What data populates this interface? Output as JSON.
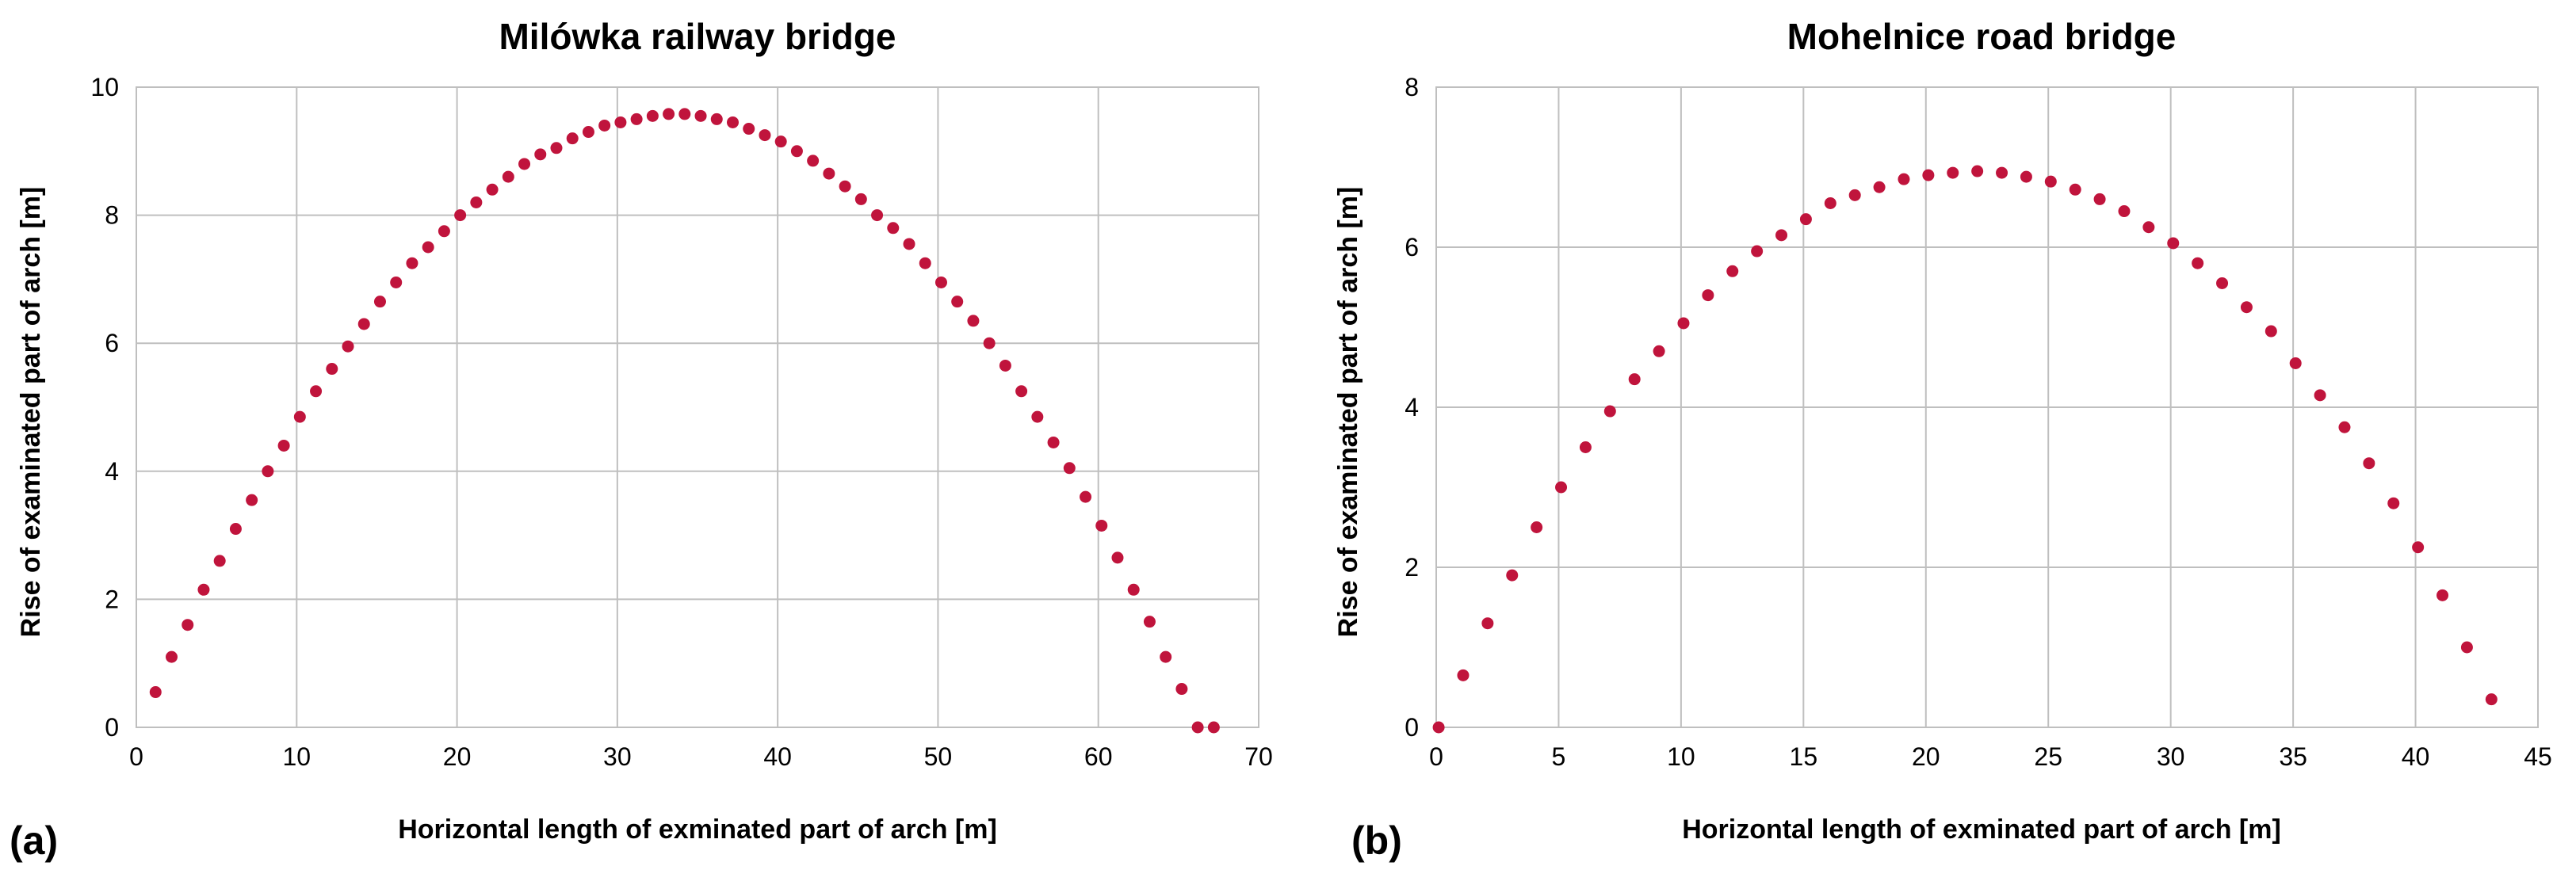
{
  "chart_data": [
    {
      "type": "scatter",
      "panel_label": "(a)",
      "title": "Milówka railway bridge",
      "xlabel": "Horizontal length of exminated part of arch [m]",
      "ylabel": "Rise of examinated part of arch [m]",
      "xlim": [
        0,
        70
      ],
      "ylim": [
        0,
        10
      ],
      "xticks": [
        0,
        10,
        20,
        30,
        40,
        50,
        60,
        70
      ],
      "yticks": [
        0,
        2,
        4,
        6,
        8,
        10
      ],
      "grid": true,
      "marker_color": "#c0143c",
      "series": [
        {
          "x": [
            1.2,
            2.2,
            3.2,
            4.2,
            5.2,
            6.2,
            7.2,
            8.2,
            9.2,
            10.2,
            11.2,
            12.2,
            13.2,
            14.2,
            15.2,
            16.2,
            17.2,
            18.2,
            19.2,
            20.2,
            21.2,
            22.2,
            23.2,
            24.2,
            25.2,
            26.2,
            27.2,
            28.2,
            29.2,
            30.2,
            31.2,
            32.2,
            33.2,
            34.2,
            35.2,
            36.2,
            37.2,
            38.2,
            39.2,
            40.2,
            41.2,
            42.2,
            43.2,
            44.2,
            45.2,
            46.2,
            47.2,
            48.2,
            49.2,
            50.2,
            51.2,
            52.2,
            53.2,
            54.2,
            55.2,
            56.2,
            57.2,
            58.2,
            59.2,
            60.2,
            61.2,
            62.2,
            63.2,
            64.2,
            65.2,
            66.2,
            67.2
          ],
          "y": [
            0.55,
            1.1,
            1.6,
            2.15,
            2.6,
            3.1,
            3.55,
            4.0,
            4.4,
            4.85,
            5.25,
            5.6,
            5.95,
            6.3,
            6.65,
            6.95,
            7.25,
            7.5,
            7.75,
            8.0,
            8.2,
            8.4,
            8.6,
            8.8,
            8.95,
            9.05,
            9.2,
            9.3,
            9.4,
            9.45,
            9.5,
            9.55,
            9.58,
            9.58,
            9.55,
            9.5,
            9.45,
            9.35,
            9.25,
            9.15,
            9.0,
            8.85,
            8.65,
            8.45,
            8.25,
            8.0,
            7.8,
            7.55,
            7.25,
            6.95,
            6.65,
            6.35,
            6.0,
            5.65,
            5.25,
            4.85,
            4.45,
            4.05,
            3.6,
            3.15,
            2.65,
            2.15,
            1.65,
            1.1,
            0.6,
            0.0,
            0.0
          ]
        }
      ]
    },
    {
      "type": "scatter",
      "panel_label": "(b)",
      "title": "Mohelnice road bridge",
      "xlabel": "Horizontal length of exminated part of arch [m]",
      "ylabel": "Rise of examinated part of arch [m]",
      "xlim": [
        0,
        45
      ],
      "ylim": [
        0,
        8
      ],
      "xticks": [
        0,
        5,
        10,
        15,
        20,
        25,
        30,
        35,
        40,
        45
      ],
      "yticks": [
        0,
        2,
        4,
        6,
        8
      ],
      "grid": true,
      "marker_color": "#c0143c",
      "series": [
        {
          "x": [
            0.1,
            1.1,
            2.1,
            3.1,
            4.1,
            5.1,
            6.1,
            7.1,
            8.1,
            9.1,
            10.1,
            11.1,
            12.1,
            13.1,
            14.1,
            15.1,
            16.1,
            17.1,
            18.1,
            19.1,
            20.1,
            21.1,
            22.1,
            23.1,
            24.1,
            25.1,
            26.1,
            27.1,
            28.1,
            29.1,
            30.1,
            31.1,
            32.1,
            33.1,
            34.1,
            35.1,
            36.1,
            37.1,
            38.1,
            39.1,
            40.1,
            41.1,
            42.1,
            43.1
          ],
          "y": [
            0.0,
            0.65,
            1.3,
            1.9,
            2.5,
            3.0,
            3.5,
            3.95,
            4.35,
            4.7,
            5.05,
            5.4,
            5.7,
            5.95,
            6.15,
            6.35,
            6.55,
            6.65,
            6.75,
            6.85,
            6.9,
            6.93,
            6.95,
            6.93,
            6.88,
            6.82,
            6.72,
            6.6,
            6.45,
            6.25,
            6.05,
            5.8,
            5.55,
            5.25,
            4.95,
            4.55,
            4.15,
            3.75,
            3.3,
            2.8,
            2.25,
            1.65,
            1.0,
            0.35
          ]
        }
      ]
    }
  ]
}
